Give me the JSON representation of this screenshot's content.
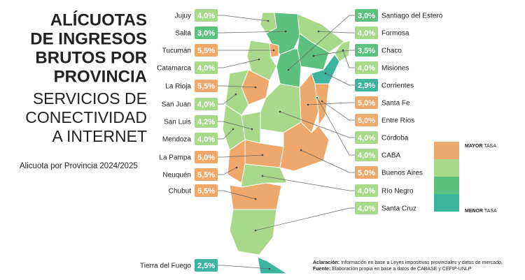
{
  "title": [
    "ALÍCUOTAS",
    "DE INGRESOS",
    "BRUTOS POR",
    "PROVINCIA"
  ],
  "subtitle": [
    "SERVICIOS DE",
    "CONECTIVIDAD",
    "A INTERNET"
  ],
  "caption": "Alicuota por Provincia 2024/2025",
  "provinces": [
    {
      "name": "Jujuy",
      "value": "4,0%",
      "color": "#a8d98a"
    },
    {
      "name": "Salta",
      "value": "3,0%",
      "color": "#5cc07e"
    },
    {
      "name": "Tucumán",
      "value": "5,5%",
      "color": "#eea86b"
    },
    {
      "name": "Catamarca",
      "value": "4,0%",
      "color": "#a8d98a"
    },
    {
      "name": "La Rioja",
      "value": "5,5%",
      "color": "#eea86b"
    },
    {
      "name": "San Juan",
      "value": "4,0%",
      "color": "#a8d98a"
    },
    {
      "name": "San Luis",
      "value": "4,2%",
      "color": "#a8d98a"
    },
    {
      "name": "Mendoza",
      "value": "4,0%",
      "color": "#a8d98a"
    },
    {
      "name": "La Pampa",
      "value": "5,0%",
      "color": "#eea86b"
    },
    {
      "name": "Neuquén",
      "value": "5,5%",
      "color": "#eea86b"
    },
    {
      "name": "Chubut",
      "value": "5,5%",
      "color": "#eea86b"
    },
    {
      "name": "Tierra del Fuego",
      "value": "2,5%",
      "color": "#3db59c"
    },
    {
      "name": "Santiago del Estero",
      "value": "3,0%",
      "color": "#5cc07e"
    },
    {
      "name": "Formosa",
      "value": "4,0%",
      "color": "#a8d98a"
    },
    {
      "name": "Chaco",
      "value": "3,5%",
      "color": "#5cc07e"
    },
    {
      "name": "Misiones",
      "value": "4,0%",
      "color": "#a8d98a"
    },
    {
      "name": "Corrientes",
      "value": "2,9%",
      "color": "#3db59c"
    },
    {
      "name": "Santa Fe",
      "value": "5,0%",
      "color": "#eea86b"
    },
    {
      "name": "Entre Ríos",
      "value": "5,0%",
      "color": "#eea86b"
    },
    {
      "name": "Córdoba",
      "value": "4,0%",
      "color": "#a8d98a"
    },
    {
      "name": "CABA",
      "value": "4,0%",
      "color": "#a8d98a"
    },
    {
      "name": "Buenos Aires",
      "value": "5,0%",
      "color": "#eea86b"
    },
    {
      "name": "Río Negro",
      "value": "4,0%",
      "color": "#a8d98a"
    },
    {
      "name": "Santa Cruz",
      "value": "4,0%",
      "color": "#a8d98a"
    }
  ],
  "legend": {
    "top": {
      "strong": "MAYOR",
      "rest": "TASA"
    },
    "bottom": {
      "strong": "MENOR",
      "rest": "TASA"
    },
    "colors": [
      "#eea86b",
      "#a8d98a",
      "#5cc07e",
      "#3db59c"
    ]
  },
  "notes": [
    {
      "label": "Aclaración:",
      "text": "Información en base a Leyes impositivas provinciales y datos de mercado."
    },
    {
      "label": "Fuente:",
      "text": "Elaboración propia en base a datos de CABASE y CEFIP-UNLP"
    }
  ]
}
